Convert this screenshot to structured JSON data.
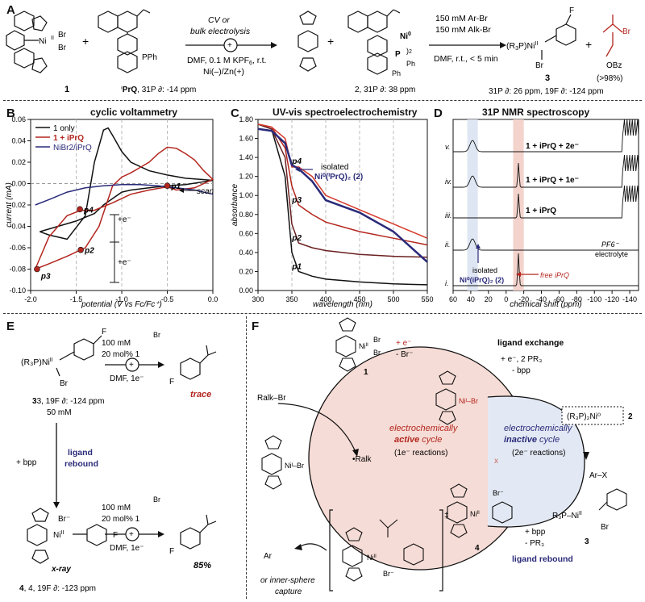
{
  "panels": {
    "A": "A",
    "B": "B",
    "C": "C",
    "D": "D",
    "E": "E",
    "F": "F"
  },
  "panelA": {
    "cmpd1": "1",
    "ni_label": "Ni",
    "ni_ox": "II",
    "br": "Br",
    "plus": "+",
    "pph2": "PPh",
    "prq_caption_name": "PrQ",
    "prq_caption_nmr": ", 31P ∂: -14 ppm",
    "cond_top1": "CV or",
    "cond_top2": "bulk electrolysis",
    "cond_bot1": "DMF, 0.1 M KPF",
    "cond_bot2": "Ni(–)/Zn(+)",
    "cond_bot1b": ", r.t.",
    "ni0": "Ni",
    "ni0_sup": "0",
    "x2": "2",
    "ph": "Ph",
    "cmpd2_caption": "2, 31P ∂: 38 ppm",
    "arbr": "150 mM Ar-Br",
    "alkbr": "150 mM Alk-Br",
    "cond3": "DMF, r.t., < 5 min",
    "r3p": "(R",
    "r3p_tail": "P)Ni",
    "f": "F",
    "obz": "OBz",
    "yield": "(>98%)",
    "cmpd3": "3",
    "cmpd3_caption": "31P ∂: 26 ppm, 19F ∂: -124 ppm"
  },
  "panelB": {
    "title": "cyclic voltammetry",
    "ylabel": "current (mA)",
    "xlabel": "potential (V vs Fc/Fc⁺)",
    "legend": [
      "1 only",
      "1 + iPrQ",
      "NiBr2/iPrQ"
    ],
    "scan": "scan",
    "e_minus": "+e⁻",
    "points": [
      "p1",
      "p2",
      "p3",
      "p4"
    ]
  },
  "panelC": {
    "title": "UV-vis spectroelectrochemistry",
    "ylabel": "absorbance",
    "xlabel": "wavelength (nm)",
    "isolated1": "isolated",
    "isolated2": "Ni⁰(ⁱPrQ)₂ (2)",
    "points": [
      "p1",
      "p2",
      "p3",
      "p4"
    ]
  },
  "panelD": {
    "title": "31P NMR spectroscopy",
    "xlabel": "chemical shift (ppm)",
    "rows": [
      "v.",
      "iv.",
      "iii.",
      "ii.",
      "i."
    ],
    "lab_v": "1 + iPrQ + 2e⁻",
    "lab_iv": "1 + iPrQ + 1e⁻",
    "lab_iii": "1 + iPrQ",
    "pf6": "PF6⁻",
    "electrolyte": "electrolyte",
    "isolated1": "isolated",
    "isolated2": "Ni⁰(iPrQ)₂ (2)",
    "free": "free iPrQ"
  },
  "panelE": {
    "r3p": "(R₃P)Ni",
    "ni_ox": "II",
    "f": "F",
    "br": "Br",
    "cmpd3": "3, 19F ∂: -124 ppm",
    "conc": "50 mM",
    "cond_a": "100 mM",
    "cond_b": "Br",
    "cond_c": "20 mol% 1",
    "cond_d": "DMF, 1e⁻",
    "trace": "trace",
    "bpp": "+ bpp",
    "ligand": "ligand",
    "rebound": "rebound",
    "brminus": "Br⁻",
    "xray": "x-ray",
    "cmpd4": "4, 19F ∂: -123 ppm",
    "yield": "85%"
  },
  "panelF": {
    "cmpd1": "1",
    "e1": "+ e⁻",
    "e1b": "- Br⁻",
    "ligand_exchange": "ligand exchange",
    "le_a": "+ e⁻, 2 PR₃",
    "le_b": "- bpp",
    "r3p2ni0": "(R₃P)₂Ni⁰",
    "cmpd2": "2",
    "ralkbr": "Ralk–Br",
    "ni1br": "Niᴵ–Br",
    "rad": "•Ralk",
    "active1": "electrochemically",
    "active2": "active",
    "active3": "cycle",
    "active4": "(1e⁻ reactions)",
    "inactive1": "electrochemically",
    "inactive2": "inactive",
    "inactive3": "cycle",
    "inactive4": "(2e⁻ reactions)",
    "arx": "Ar–X",
    "r3p_ni": "R₃P–Ni",
    "br": "Br",
    "cmpd3": "3",
    "brminus": "Br⁻",
    "cmpd4": "4",
    "bpp": "+ bpp",
    "pr3": "- PR₃",
    "ligand_rebound": "ligand rebound",
    "ar": "Ar",
    "inner1": "or inner-sphere",
    "inner2": "capture",
    "x": "x",
    "dagger": "‡"
  },
  "chart_data": [
    {
      "type": "line",
      "title": "cyclic voltammetry",
      "xlabel": "potential (V vs Fc/Fc⁺)",
      "ylabel": "current (mA)",
      "xlim": [
        -2.0,
        0.0
      ],
      "ylim": [
        -0.1,
        0.06
      ],
      "grid": "dashed vertical at -1.5, -1.0, -0.5",
      "legend_position": "top-left",
      "series": [
        {
          "name": "1 only",
          "color": "#111111",
          "x": [
            -1.9,
            -1.8,
            -1.6,
            -1.4,
            -1.3,
            -1.2,
            -1.15,
            -1.1,
            -1.0,
            -0.9,
            -0.7,
            -0.5,
            -0.3,
            0.0,
            -0.3,
            -0.5,
            -0.7,
            -0.9,
            -1.0,
            -1.1,
            -1.2,
            -1.3,
            -1.5,
            -1.7,
            -1.9
          ],
          "y": [
            -0.045,
            -0.048,
            -0.052,
            -0.03,
            0.02,
            0.05,
            0.052,
            0.045,
            0.03,
            0.02,
            0.012,
            0.008,
            0.005,
            0.003,
            -0.001,
            -0.002,
            -0.004,
            -0.006,
            -0.008,
            -0.014,
            -0.02,
            -0.028,
            -0.035,
            -0.04,
            -0.045
          ]
        },
        {
          "name": "1 + iPrQ",
          "color": "#b3261e",
          "x": [
            -1.95,
            -1.8,
            -1.6,
            -1.4,
            -1.25,
            -1.1,
            -1.0,
            -0.9,
            -0.8,
            -0.7,
            -0.6,
            -0.5,
            -0.4,
            -0.3,
            -0.2,
            -0.1,
            0.0,
            -0.2,
            -0.4,
            -0.5,
            -0.7,
            -0.9,
            -1.1,
            -1.3,
            -1.45,
            -1.6,
            -1.8,
            -1.95
          ],
          "y": [
            -0.08,
            -0.075,
            -0.068,
            -0.06,
            -0.04,
            -0.002,
            0.006,
            0.01,
            0.015,
            0.02,
            0.028,
            0.034,
            0.033,
            0.028,
            0.022,
            0.012,
            0.004,
            -0.004,
            -0.006,
            -0.003,
            -0.006,
            -0.01,
            -0.018,
            -0.025,
            -0.025,
            -0.03,
            -0.05,
            -0.08
          ]
        },
        {
          "name": "NiBr2/iPrQ",
          "color": "#2a2a7a",
          "x": [
            -1.95,
            -1.8,
            -1.6,
            -1.4,
            -1.2,
            -1.0,
            -0.8,
            -0.6,
            -0.4,
            -0.2,
            0.0
          ],
          "y": [
            -0.02,
            -0.015,
            -0.008,
            -0.004,
            -0.002,
            -0.001,
            -0.001,
            -0.002,
            -0.004,
            -0.006,
            -0.01
          ]
        }
      ],
      "annotations": [
        {
          "label": "p1",
          "x": -0.5,
          "y": -0.002
        },
        {
          "label": "p2",
          "x": -1.45,
          "y": -0.062
        },
        {
          "label": "p3",
          "x": -1.93,
          "y": -0.08
        },
        {
          "label": "p4",
          "x": -1.46,
          "y": -0.024
        }
      ]
    },
    {
      "type": "line",
      "title": "UV-vis spectroelectrochemistry",
      "xlabel": "wavelength (nm)",
      "ylabel": "absorbance",
      "xlim": [
        300,
        550
      ],
      "ylim": [
        0,
        1.8
      ],
      "grid": "dashed vertical at 350, 400, 450, 500",
      "series": [
        {
          "name": "p1",
          "x": [
            300,
            320,
            340,
            350,
            360,
            380,
            400,
            450,
            500,
            550
          ],
          "y": [
            1.75,
            1.7,
            1.2,
            0.4,
            0.2,
            0.15,
            0.12,
            0.09,
            0.07,
            0.06
          ]
        },
        {
          "name": "p2",
          "x": [
            300,
            320,
            340,
            350,
            360,
            380,
            400,
            450,
            500,
            550
          ],
          "y": [
            1.75,
            1.7,
            1.4,
            0.7,
            0.5,
            0.45,
            0.42,
            0.38,
            0.36,
            0.35
          ]
        },
        {
          "name": "p3",
          "x": [
            300,
            320,
            340,
            350,
            360,
            380,
            400,
            450,
            500,
            550
          ],
          "y": [
            1.75,
            1.72,
            1.5,
            1.1,
            0.9,
            0.8,
            0.72,
            0.62,
            0.55,
            0.48
          ]
        },
        {
          "name": "p4",
          "x": [
            300,
            320,
            340,
            350,
            360,
            380,
            400,
            450,
            500,
            550
          ],
          "y": [
            1.75,
            1.72,
            1.6,
            1.3,
            1.3,
            1.2,
            1.0,
            0.85,
            0.7,
            0.55
          ]
        },
        {
          "name": "isolated Ni0(iPrQ)2 (2)",
          "x": [
            300,
            320,
            340,
            350,
            360,
            380,
            400,
            450,
            500,
            550
          ],
          "y": [
            1.7,
            1.68,
            1.55,
            1.32,
            1.28,
            1.15,
            0.95,
            0.82,
            0.62,
            0.3
          ]
        }
      ]
    },
    {
      "type": "line",
      "title": "31P NMR spectroscopy",
      "xlabel": "chemical shift (ppm)",
      "xlim": [
        60,
        -150
      ],
      "ticks": [
        60,
        40,
        20,
        0,
        -20,
        -40,
        -60,
        -80,
        -100,
        -120,
        -140
      ],
      "series": [
        {
          "name": "v.",
          "peaks_ppm": [
            38,
            -144
          ]
        },
        {
          "name": "iv.",
          "peaks_ppm": [
            38,
            -14,
            -144
          ]
        },
        {
          "name": "iii.",
          "peaks_ppm": [
            -14,
            -144
          ]
        },
        {
          "name": "ii.",
          "peaks_ppm": [
            38
          ]
        },
        {
          "name": "i.",
          "peaks_ppm": [
            -14
          ]
        }
      ]
    }
  ]
}
